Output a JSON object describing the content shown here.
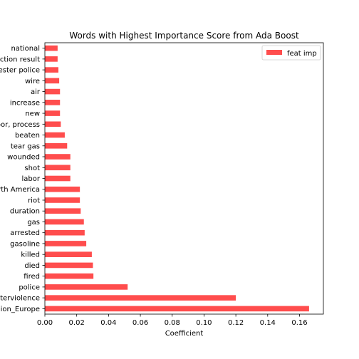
{
  "chart_data": {
    "type": "bar",
    "orientation": "horizontal",
    "title": "Words with Highest Importance Score from Ada Boost",
    "xlabel": "Coefficient",
    "ylabel": "",
    "xlim": [
      0,
      0.175
    ],
    "xticks": [
      "0.00",
      "0.02",
      "0.04",
      "0.06",
      "0.08",
      "0.10",
      "0.12",
      "0.14",
      "0.16"
    ],
    "grid": false,
    "legend_position": "top-right",
    "bar_color": "#ff4d4d",
    "categories": [
      "region_Europe",
      "protesterviolence",
      "police",
      "fired",
      "died",
      "killed",
      "gasoline",
      "arrested",
      "gas",
      "duration",
      "riot",
      "region_North America",
      "labor",
      "shot",
      "wounded",
      "tear gas",
      "beaten",
      "labor, process",
      "new",
      "increase",
      "air",
      "wire",
      "protester police",
      "election result",
      "national"
    ],
    "series": [
      {
        "name": "feat imp",
        "values": [
          0.166,
          0.12,
          0.052,
          0.0305,
          0.0302,
          0.0295,
          0.026,
          0.025,
          0.0245,
          0.0225,
          0.022,
          0.022,
          0.016,
          0.016,
          0.016,
          0.014,
          0.0125,
          0.01,
          0.0095,
          0.0095,
          0.0095,
          0.009,
          0.0085,
          0.008,
          0.008
        ]
      }
    ]
  }
}
